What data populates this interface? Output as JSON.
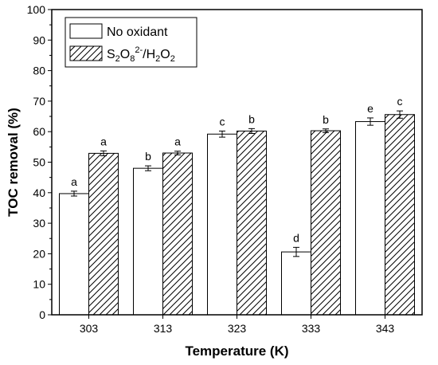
{
  "chart_data": {
    "type": "bar",
    "xlabel": "Temperature (K)",
    "ylabel": "TOC removal (%)",
    "categories": [
      "303",
      "313",
      "323",
      "333",
      "343"
    ],
    "ylim": [
      0,
      100
    ],
    "yticks": [
      "0",
      "10",
      "20",
      "30",
      "40",
      "50",
      "60",
      "70",
      "80",
      "90",
      "100"
    ],
    "legend_position": "top-left",
    "series": [
      {
        "name": "No oxidant",
        "fill": "white",
        "color": "#000000",
        "values": [
          39.7,
          48.0,
          59.2,
          20.6,
          63.3
        ],
        "errors": [
          0.8,
          0.8,
          1.0,
          1.5,
          1.2
        ],
        "letters": [
          "a",
          "b",
          "c",
          "d",
          "e"
        ]
      },
      {
        "name": "S₂O₈²⁻/H₂O₂",
        "legend_parts": [
          {
            "t": "S",
            "s": "n"
          },
          {
            "t": "2",
            "s": "sub"
          },
          {
            "t": "O",
            "s": "n"
          },
          {
            "t": "8",
            "s": "sub"
          },
          {
            "t": "2-",
            "s": "sup"
          },
          {
            "t": "/H",
            "s": "n"
          },
          {
            "t": "2",
            "s": "sub"
          },
          {
            "t": "O",
            "s": "n"
          },
          {
            "t": "2",
            "s": "sub"
          }
        ],
        "fill": "hatched",
        "color": "#000000",
        "values": [
          52.9,
          53.0,
          60.2,
          60.3,
          65.6
        ],
        "errors": [
          0.8,
          0.6,
          0.8,
          0.6,
          1.2
        ],
        "letters": [
          "a",
          "a",
          "b",
          "b",
          "c"
        ]
      }
    ]
  }
}
